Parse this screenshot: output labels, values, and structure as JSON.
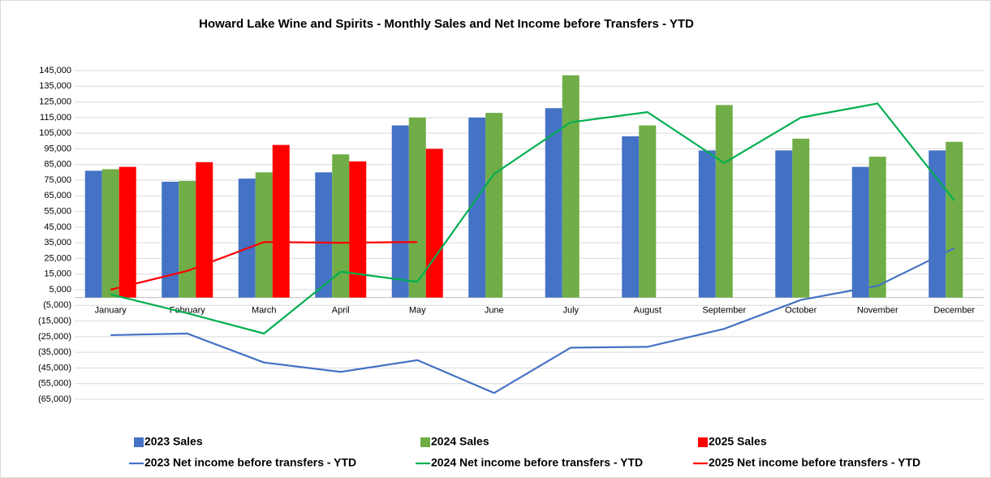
{
  "chart_data": {
    "type": "bar",
    "title": "Howard Lake Wine and Spirits - Monthly Sales and Net Income before Transfers - YTD",
    "categories": [
      "January",
      "February",
      "March",
      "April",
      "May",
      "June",
      "July",
      "August",
      "September",
      "October",
      "November",
      "December"
    ],
    "series": [
      {
        "name": "2023 Sales",
        "type": "bar",
        "color": "#4472c4",
        "values": [
          81000,
          74000,
          76000,
          80000,
          110000,
          115000,
          121000,
          103000,
          94000,
          94000,
          83500,
          94000
        ]
      },
      {
        "name": "2024 Sales",
        "type": "bar",
        "color": "#70ad47",
        "values": [
          82000,
          74500,
          80000,
          91500,
          115000,
          118000,
          142000,
          110000,
          123000,
          101500,
          90000,
          99500
        ]
      },
      {
        "name": "2025 Sales",
        "type": "bar",
        "color": "#ff0000",
        "values": [
          83500,
          86500,
          97500,
          87000,
          95000,
          null,
          null,
          null,
          null,
          null,
          null,
          null
        ]
      },
      {
        "name": "2023 Net income before transfers - YTD",
        "type": "line",
        "color": "#4472c4",
        "values": [
          -24000,
          -23000,
          -41500,
          -47500,
          -40000,
          -61000,
          -32000,
          -31500,
          -20000,
          -1500,
          7500,
          31500
        ]
      },
      {
        "name": "2024 Net income before transfers - YTD",
        "type": "line",
        "color": "#00b050",
        "values": [
          2000,
          -10000,
          -23000,
          16500,
          10000,
          79000,
          112000,
          118500,
          86000,
          115000,
          124000,
          62000
        ]
      },
      {
        "name": "2025 Net income before transfers - YTD",
        "type": "line",
        "color": "#ff0000",
        "values": [
          5000,
          17000,
          35500,
          35000,
          35500,
          null,
          null,
          null,
          null,
          null,
          null,
          null
        ]
      }
    ],
    "ylim": [
      -65000,
      145000
    ],
    "yticks": [
      {
        "value": 145000,
        "label": "145,000"
      },
      {
        "value": 135000,
        "label": "135,000"
      },
      {
        "value": 125000,
        "label": "125,000"
      },
      {
        "value": 115000,
        "label": "115,000"
      },
      {
        "value": 105000,
        "label": "105,000"
      },
      {
        "value": 95000,
        "label": "95,000"
      },
      {
        "value": 85000,
        "label": "85,000"
      },
      {
        "value": 75000,
        "label": "75,000"
      },
      {
        "value": 65000,
        "label": "65,000"
      },
      {
        "value": 55000,
        "label": "55,000"
      },
      {
        "value": 45000,
        "label": "45,000"
      },
      {
        "value": 35000,
        "label": "35,000"
      },
      {
        "value": 25000,
        "label": "25,000"
      },
      {
        "value": 15000,
        "label": "15,000"
      },
      {
        "value": 5000,
        "label": "5,000"
      },
      {
        "value": -5000,
        "label": "(5,000)"
      },
      {
        "value": -15000,
        "label": "(15,000)"
      },
      {
        "value": -25000,
        "label": "(25,000)"
      },
      {
        "value": -35000,
        "label": "(35,000)"
      },
      {
        "value": -45000,
        "label": "(45,000)"
      },
      {
        "value": -55000,
        "label": "(55,000)"
      },
      {
        "value": -65000,
        "label": "(65,000)"
      }
    ],
    "grid": true,
    "legend": "bottom"
  }
}
